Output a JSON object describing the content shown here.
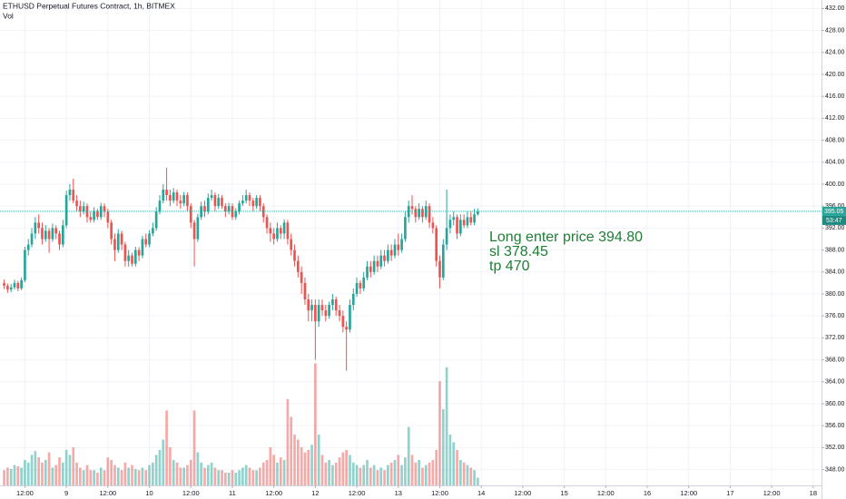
{
  "chart_data": {
    "type": "candlestick",
    "title": "ETHUSD Perpetual Futures Contract, 1h, BITMEX",
    "volume_label": "Vol",
    "annotation": [
      "Long enter price 394.80",
      "sl 378.45",
      "tp 470"
    ],
    "last_price": 395.05,
    "countdown": "53:47",
    "up_color": "#26a69a",
    "down_color": "#ef5350",
    "annotation_color": "#1e7e34",
    "grid": true,
    "xlim": [
      -19.2,
      218.4
    ],
    "ylim": [
      345.12,
      433.55
    ],
    "vlim": [
      0,
      100
    ],
    "xticks": [
      {
        "value": -12,
        "label": "12:00"
      },
      {
        "value": 0,
        "label": "9"
      },
      {
        "value": 12,
        "label": "12:00"
      },
      {
        "value": 24,
        "label": "10"
      },
      {
        "value": 36,
        "label": "12:00"
      },
      {
        "value": 48,
        "label": "11"
      },
      {
        "value": 60,
        "label": "12:00"
      },
      {
        "value": 72,
        "label": "12"
      },
      {
        "value": 84,
        "label": "12:00"
      },
      {
        "value": 96,
        "label": "13"
      },
      {
        "value": 108,
        "label": "12:00"
      },
      {
        "value": 120,
        "label": "14"
      },
      {
        "value": 132,
        "label": "12:00"
      },
      {
        "value": 144,
        "label": "15"
      },
      {
        "value": 156,
        "label": "12:00"
      },
      {
        "value": 168,
        "label": "16"
      },
      {
        "value": 180,
        "label": "12:00"
      },
      {
        "value": 192,
        "label": "17"
      },
      {
        "value": 204,
        "label": "12:00"
      },
      {
        "value": 216,
        "label": "18"
      }
    ],
    "yticks": [
      {
        "value": 348,
        "label": "348.00"
      },
      {
        "value": 352,
        "label": "352.00"
      },
      {
        "value": 356,
        "label": "356.00"
      },
      {
        "value": 360,
        "label": "360.00"
      },
      {
        "value": 364,
        "label": "364.00"
      },
      {
        "value": 368,
        "label": "368.00"
      },
      {
        "value": 372,
        "label": "372.00"
      },
      {
        "value": 376,
        "label": "376.00"
      },
      {
        "value": 380,
        "label": "380.00"
      },
      {
        "value": 384,
        "label": "384.00"
      },
      {
        "value": 388,
        "label": "388.00"
      },
      {
        "value": 392,
        "label": "392.00"
      },
      {
        "value": 396,
        "label": "396.00"
      },
      {
        "value": 400,
        "label": "400.00"
      },
      {
        "value": 404,
        "label": "404.00"
      },
      {
        "value": 408,
        "label": "408.00"
      },
      {
        "value": 412,
        "label": "412.00"
      },
      {
        "value": 416,
        "label": "416.00"
      },
      {
        "value": 420,
        "label": "420.00"
      },
      {
        "value": 424,
        "label": "424.00"
      },
      {
        "value": 428,
        "label": "428.00"
      },
      {
        "value": 432,
        "label": "432.00"
      }
    ],
    "x": [
      -18,
      -17,
      -16,
      -15,
      -14,
      -13,
      -12,
      -11,
      -10,
      -9,
      -8,
      -7,
      -6,
      -5,
      -4,
      -3,
      -2,
      -1,
      0,
      1,
      2,
      3,
      4,
      5,
      6,
      7,
      8,
      9,
      10,
      11,
      12,
      13,
      14,
      15,
      16,
      17,
      18,
      19,
      20,
      21,
      22,
      23,
      24,
      25,
      26,
      27,
      28,
      29,
      30,
      31,
      32,
      33,
      34,
      35,
      36,
      37,
      38,
      39,
      40,
      41,
      42,
      43,
      44,
      45,
      46,
      47,
      48,
      49,
      50,
      51,
      52,
      53,
      54,
      55,
      56,
      57,
      58,
      59,
      60,
      61,
      62,
      63,
      64,
      65,
      66,
      67,
      68,
      69,
      70,
      71,
      72,
      73,
      74,
      75,
      76,
      77,
      78,
      79,
      80,
      81,
      82,
      83,
      84,
      85,
      86,
      87,
      88,
      89,
      90,
      91,
      92,
      93,
      94,
      95,
      96,
      97,
      98,
      99,
      100,
      101,
      102,
      103,
      104,
      105,
      106,
      107,
      108,
      109,
      110,
      111,
      112,
      113,
      114,
      115,
      116,
      117,
      118,
      119
    ],
    "ohlc": [
      [
        382,
        382.6,
        380.9,
        381.5
      ],
      [
        381.5,
        381.9,
        380.2,
        380.8
      ],
      [
        380.8,
        381.8,
        380.3,
        381.2
      ],
      [
        381.2,
        382.6,
        380.8,
        382
      ],
      [
        382,
        382.4,
        380.5,
        381
      ],
      [
        381,
        383,
        380.7,
        382.5
      ],
      [
        382.5,
        388.6,
        382.1,
        388
      ],
      [
        388,
        390,
        387,
        389
      ],
      [
        389,
        392,
        388.5,
        391
      ],
      [
        391,
        394,
        390,
        393
      ],
      [
        393,
        394.5,
        391,
        392
      ],
      [
        392,
        393,
        389,
        390
      ],
      [
        390,
        392.5,
        389.5,
        391.5
      ],
      [
        391.5,
        392,
        387.5,
        390
      ],
      [
        390,
        392.8,
        389.5,
        392
      ],
      [
        392,
        392.5,
        390,
        391
      ],
      [
        391,
        391.5,
        388,
        389
      ],
      [
        389,
        393.5,
        388.5,
        392.5
      ],
      [
        392.5,
        398.8,
        392,
        398
      ],
      [
        398,
        400,
        397,
        399
      ],
      [
        399,
        401,
        396.5,
        397
      ],
      [
        397,
        398,
        395,
        396
      ],
      [
        396,
        397,
        394,
        395
      ],
      [
        395,
        396.8,
        394.5,
        396
      ],
      [
        396,
        396.5,
        393,
        394
      ],
      [
        394,
        395,
        393,
        393.5
      ],
      [
        393.5,
        395.8,
        393,
        395
      ],
      [
        395,
        395.5,
        393.5,
        394
      ],
      [
        394,
        396.6,
        393.5,
        396
      ],
      [
        396,
        396.5,
        394,
        395
      ],
      [
        395,
        395.5,
        392,
        393
      ],
      [
        393,
        393.5,
        389,
        390
      ],
      [
        390,
        391,
        386,
        388
      ],
      [
        388,
        391.8,
        387.5,
        391
      ],
      [
        391,
        391.5,
        388,
        389
      ],
      [
        389,
        389.5,
        385,
        386
      ],
      [
        386,
        388,
        385,
        387
      ],
      [
        387,
        387.5,
        385,
        385.5
      ],
      [
        385.5,
        388.6,
        385,
        388
      ],
      [
        388,
        388.5,
        386,
        387
      ],
      [
        387,
        390.6,
        386.5,
        390
      ],
      [
        390,
        391,
        388.5,
        389
      ],
      [
        389,
        391.6,
        388.5,
        391
      ],
      [
        391,
        393,
        390.5,
        392
      ],
      [
        392,
        395.8,
        391.5,
        395
      ],
      [
        395,
        398,
        394.5,
        397
      ],
      [
        397,
        400,
        396.5,
        399
      ],
      [
        399,
        403,
        397,
        398
      ],
      [
        398,
        399,
        396,
        397
      ],
      [
        397,
        399.3,
        396.5,
        398.5
      ],
      [
        398.5,
        399,
        396,
        397
      ],
      [
        397,
        398,
        395.5,
        396.5
      ],
      [
        396.5,
        398.6,
        396,
        398
      ],
      [
        398,
        398.5,
        395,
        396
      ],
      [
        396,
        396.5,
        392,
        393
      ],
      [
        393,
        393.5,
        385,
        390
      ],
      [
        390,
        394.6,
        389.5,
        394
      ],
      [
        394,
        396.8,
        393.5,
        396
      ],
      [
        396,
        397,
        394,
        395
      ],
      [
        395,
        398.3,
        394.5,
        397.5
      ],
      [
        397.5,
        399,
        397,
        398
      ],
      [
        398,
        398.5,
        395,
        396
      ],
      [
        396,
        398.2,
        395.5,
        397.5
      ],
      [
        397.5,
        398,
        395.5,
        396
      ],
      [
        396,
        396.5,
        394,
        395
      ],
      [
        395,
        396.6,
        394.5,
        396
      ],
      [
        396,
        396.5,
        393.5,
        394
      ],
      [
        394,
        395.6,
        393.5,
        395
      ],
      [
        395,
        397,
        394.5,
        396.5
      ],
      [
        396.5,
        398,
        396,
        397
      ],
      [
        397,
        399,
        396.5,
        398
      ],
      [
        398,
        398.5,
        396,
        397
      ],
      [
        397,
        397.5,
        395,
        396
      ],
      [
        396,
        398,
        395.5,
        397.5
      ],
      [
        397.5,
        398,
        395,
        396
      ],
      [
        396,
        396.5,
        393,
        394
      ],
      [
        394,
        394.5,
        391,
        392
      ],
      [
        392,
        393,
        389.5,
        391
      ],
      [
        391,
        392,
        389,
        390
      ],
      [
        390,
        393,
        389.5,
        392
      ],
      [
        392,
        392.5,
        390,
        391
      ],
      [
        391,
        393.6,
        390,
        393
      ],
      [
        393,
        393.5,
        389,
        390
      ],
      [
        390,
        391,
        387,
        388
      ],
      [
        388,
        389,
        385,
        386
      ],
      [
        386,
        387,
        383,
        384
      ],
      [
        384,
        385,
        380,
        382
      ],
      [
        382,
        383,
        378,
        379
      ],
      [
        379,
        380,
        375,
        377
      ],
      [
        377,
        379,
        375,
        378
      ],
      [
        378,
        379,
        368,
        375
      ],
      [
        375,
        379,
        374,
        378
      ],
      [
        378,
        379,
        376,
        377
      ],
      [
        377,
        378,
        375,
        376
      ],
      [
        376,
        378.6,
        375.5,
        378
      ],
      [
        378,
        380,
        377,
        379
      ],
      [
        379,
        379.5,
        376,
        377
      ],
      [
        377,
        378,
        375,
        376
      ],
      [
        376,
        377,
        373,
        374
      ],
      [
        374,
        375,
        366,
        373.5
      ],
      [
        373.5,
        379,
        373,
        378
      ],
      [
        378,
        381,
        377,
        380
      ],
      [
        380,
        383,
        379.5,
        382
      ],
      [
        382,
        382.5,
        380,
        381
      ],
      [
        381,
        384,
        380.5,
        383
      ],
      [
        383,
        386,
        382.5,
        385
      ],
      [
        385,
        386,
        383,
        384
      ],
      [
        384,
        387,
        383.5,
        386
      ],
      [
        386,
        387,
        384,
        385
      ],
      [
        385,
        388,
        384.5,
        387
      ],
      [
        387,
        388,
        385,
        386
      ],
      [
        386,
        389,
        385.5,
        388
      ],
      [
        388,
        389,
        386,
        387
      ],
      [
        387,
        390,
        386.5,
        389
      ],
      [
        389,
        391,
        387,
        388
      ],
      [
        388,
        391,
        387.5,
        390
      ],
      [
        390,
        395,
        389.5,
        394
      ],
      [
        394,
        397,
        393,
        396
      ],
      [
        396,
        398,
        394.5,
        395.5
      ],
      [
        395.5,
        396,
        393,
        394
      ],
      [
        394,
        396.5,
        393.5,
        395.5
      ],
      [
        395.5,
        396,
        393,
        394
      ],
      [
        394,
        397,
        393.5,
        396
      ],
      [
        396,
        396.5,
        392,
        393
      ],
      [
        393,
        394,
        391,
        392
      ],
      [
        392,
        392.5,
        385,
        386
      ],
      [
        386,
        387,
        381,
        383
      ],
      [
        383,
        390,
        382.5,
        389
      ],
      [
        389,
        399,
        388,
        392
      ],
      [
        392,
        394.5,
        391,
        393.5
      ],
      [
        393.5,
        395,
        392.5,
        394
      ],
      [
        394,
        394.5,
        390,
        391
      ],
      [
        391,
        394.5,
        390.5,
        393.5
      ],
      [
        393.5,
        394.5,
        392,
        392.5
      ],
      [
        392.5,
        395,
        392,
        394
      ],
      [
        394,
        395,
        392.5,
        393
      ],
      [
        393,
        395.5,
        392.5,
        394.5
      ],
      [
        394.5,
        395.6,
        394.3,
        395.05
      ]
    ],
    "volume": [
      12,
      14,
      13,
      16,
      15,
      14,
      20,
      18,
      24,
      27,
      22,
      18,
      20,
      26,
      14,
      16,
      22,
      18,
      28,
      24,
      30,
      18,
      14,
      12,
      16,
      12,
      12,
      10,
      14,
      12,
      22,
      20,
      16,
      14,
      12,
      18,
      14,
      16,
      13,
      12,
      14,
      12,
      16,
      18,
      24,
      28,
      36,
      59,
      30,
      20,
      18,
      14,
      14,
      16,
      20,
      59,
      26,
      18,
      14,
      16,
      18,
      14,
      12,
      12,
      10,
      10,
      12,
      10,
      12,
      14,
      16,
      14,
      12,
      12,
      14,
      18,
      20,
      30,
      24,
      18,
      22,
      20,
      68,
      54,
      40,
      36,
      30,
      26,
      28,
      32,
      96,
      40,
      24,
      18,
      20,
      16,
      18,
      22,
      26,
      28,
      24,
      18,
      16,
      14,
      16,
      20,
      14,
      16,
      12,
      14,
      12,
      16,
      18,
      20,
      24,
      16,
      22,
      46,
      24,
      18,
      20,
      14,
      16,
      18,
      20,
      28,
      82,
      60,
      93,
      40,
      34,
      28,
      20,
      18,
      16,
      14,
      12,
      6
    ]
  }
}
